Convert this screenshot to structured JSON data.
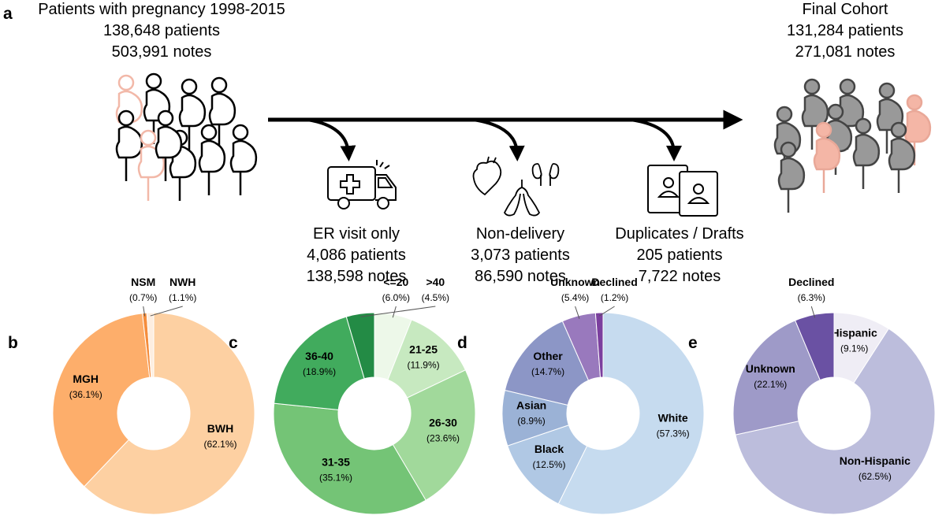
{
  "panel_a": {
    "label": "a",
    "start": {
      "lines": [
        "Patients with pregnancy 1998-2015",
        "138,648 patients",
        "503,991 notes"
      ]
    },
    "end": {
      "lines": [
        "Final Cohort",
        "131,284 patients",
        "271,081 notes"
      ]
    },
    "exclusions": [
      {
        "lines": [
          "ER visit only",
          "4,086 patients",
          "138,598 notes"
        ]
      },
      {
        "lines": [
          "Non-delivery",
          "3,073 patients",
          "86,590 notes"
        ]
      },
      {
        "lines": [
          "Duplicates / Drafts",
          "205 patients",
          "7,722 notes"
        ]
      }
    ]
  },
  "chart_data": [
    {
      "type": "pie",
      "label": "b",
      "categories": [
        "BWH",
        "MGH",
        "NSM",
        "NWH"
      ],
      "values": [
        62.1,
        36.1,
        0.7,
        1.1
      ],
      "value_labels": [
        "(62.1%)",
        "(36.1%)",
        "(0.7%)",
        "(1.1%)"
      ],
      "colors": [
        "#fdd0a2",
        "#fdae6b",
        "#f58d3c",
        "#fdeee0"
      ]
    },
    {
      "type": "pie",
      "label": "c",
      "categories": [
        "<=20",
        "21-25",
        "26-30",
        "31-35",
        "36-40",
        ">40"
      ],
      "values": [
        6.0,
        11.9,
        23.6,
        35.1,
        18.9,
        4.5
      ],
      "value_labels": [
        "(6.0%)",
        "(11.9%)",
        "(23.6%)",
        "(35.1%)",
        "(18.9%)",
        "(4.5%)"
      ],
      "colors": [
        "#edf8e9",
        "#c7e9c0",
        "#a1d99b",
        "#74c476",
        "#41ab5d",
        "#238b45"
      ]
    },
    {
      "type": "pie",
      "label": "d",
      "categories": [
        "White",
        "Black",
        "Asian",
        "Other",
        "Unknown",
        "Declined"
      ],
      "values": [
        57.3,
        12.5,
        8.9,
        14.7,
        5.4,
        1.2
      ],
      "value_labels": [
        "(57.3%)",
        "(12.5%)",
        "(8.9%)",
        "(14.7%)",
        "(5.4%)",
        "(1.2%)"
      ],
      "colors": [
        "#c6dbef",
        "#b0c8e4",
        "#9bb2d6",
        "#8c96c6",
        "#9979bd",
        "#7b3f9e"
      ]
    },
    {
      "type": "pie",
      "label": "e",
      "categories": [
        "Hispanic",
        "Non-Hispanic",
        "Unknown",
        "Declined"
      ],
      "values": [
        9.1,
        62.5,
        22.1,
        6.3
      ],
      "value_labels": [
        "(9.1%)",
        "(62.5%)",
        "(22.1%)",
        "(6.3%)"
      ],
      "colors": [
        "#efedf5",
        "#bcbddc",
        "#9e9ac8",
        "#6a51a3"
      ]
    }
  ]
}
